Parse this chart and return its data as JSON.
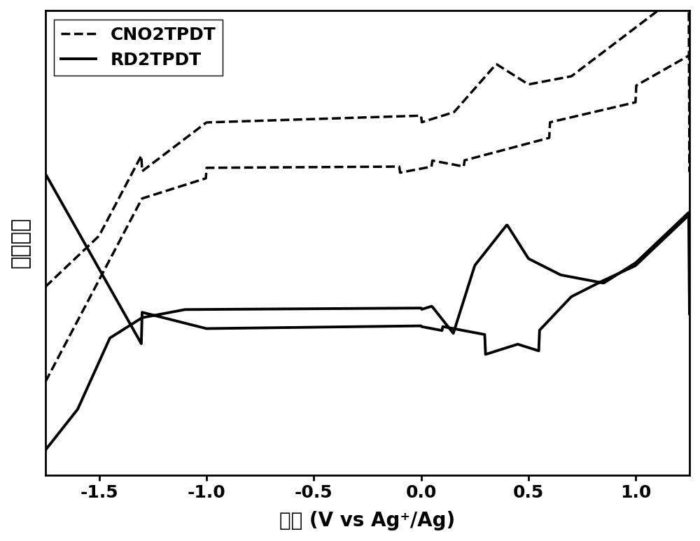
{
  "title": "",
  "xlabel": "电压 (V vs Ag⁺/Ag)",
  "ylabel": "电流密度",
  "xlim": [
    -1.75,
    1.25
  ],
  "ylim_relative": true,
  "background_color": "#ffffff",
  "line_color": "#000000",
  "legend_entries": [
    "CNO2TPDT",
    "RD2TPDT"
  ],
  "legend_styles": [
    "dashed",
    "solid"
  ],
  "tick_labels_x": [
    "-1.5",
    "-1.0",
    "-0.5",
    "0.0",
    "0.5",
    "1.0"
  ],
  "tick_positions_x": [
    -1.5,
    -1.0,
    -0.5,
    0.0,
    0.5,
    1.0
  ]
}
